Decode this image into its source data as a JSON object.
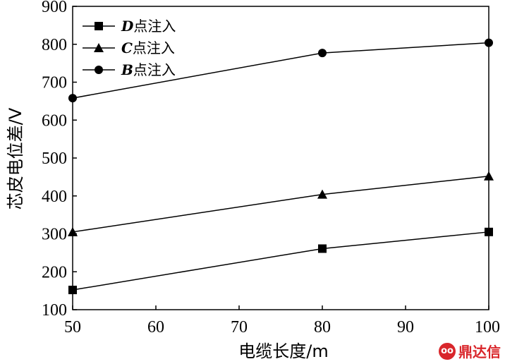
{
  "chart_data": {
    "type": "line",
    "xlabel": "电缆长度/m",
    "ylabel": "芯皮电位差/V",
    "xlim": [
      50,
      100
    ],
    "ylim": [
      100,
      900
    ],
    "xticks": [
      "50",
      "60",
      "70",
      "80",
      "90",
      "100"
    ],
    "yticks": [
      "100",
      "200",
      "300",
      "400",
      "500",
      "600",
      "700",
      "800",
      "900"
    ],
    "grid": false,
    "legend_position": "top-left",
    "x": [
      50,
      80,
      100
    ],
    "series": [
      {
        "name_letter": "D",
        "name_suffix": "点注入",
        "marker": "square",
        "values": [
          152,
          261,
          305
        ]
      },
      {
        "name_letter": "C",
        "name_suffix": "点注入",
        "marker": "triangle",
        "values": [
          305,
          404,
          452
        ]
      },
      {
        "name_letter": "B",
        "name_suffix": "点注入",
        "marker": "circle",
        "values": [
          658,
          777,
          804
        ]
      }
    ]
  },
  "watermark": {
    "logo_text": "oo",
    "text": "鼎达信"
  }
}
